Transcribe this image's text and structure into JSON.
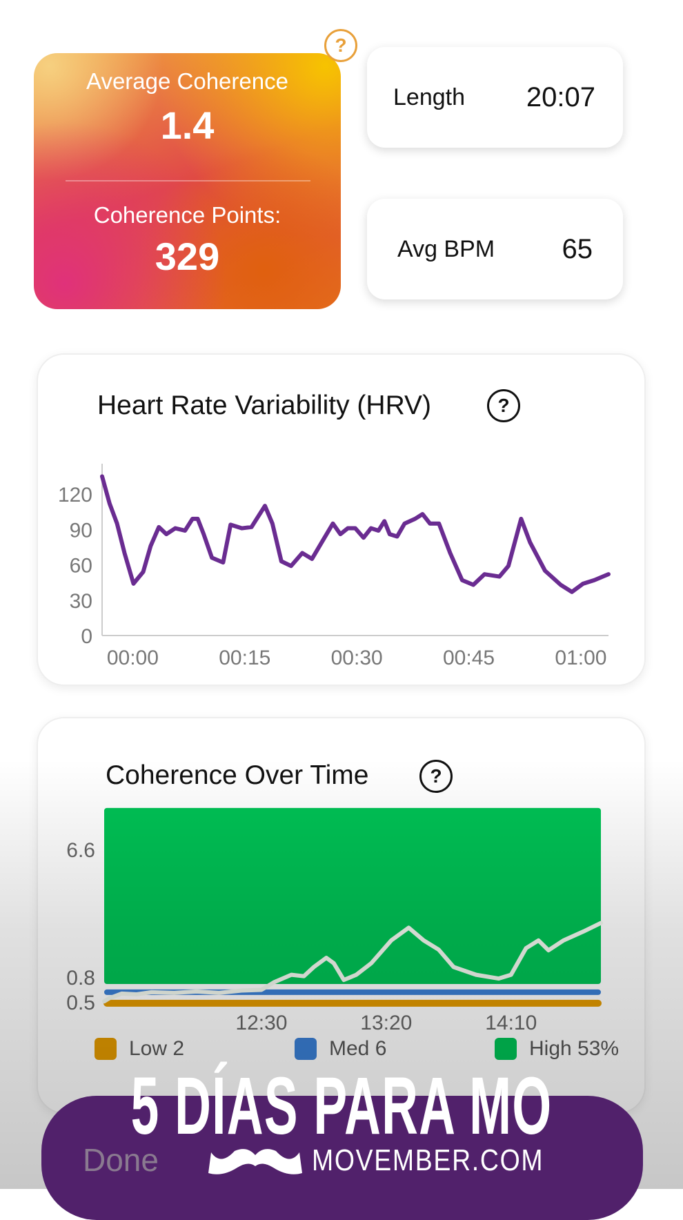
{
  "summary": {
    "avg_coherence_label": "Average Coherence",
    "avg_coherence_value": "1.4",
    "points_label": "Coherence Points:",
    "points_value": "329",
    "help": "?"
  },
  "stats": [
    {
      "label": "Length",
      "value": "20:07"
    },
    {
      "label": "Avg BPM",
      "value": "65"
    }
  ],
  "hrv": {
    "title": "Heart Rate Variability (HRV)",
    "help": "?"
  },
  "coherence": {
    "title": "Coherence Over Time",
    "help": "?",
    "legend": [
      {
        "label": "Low 2",
        "color": "#e39a00"
      },
      {
        "label": "Med 6",
        "color": "#3a7fd5"
      },
      {
        "label": "High 53%",
        "color": "#00c255"
      }
    ]
  },
  "done_label": "Done",
  "overlay": {
    "headline": "5 DÍAS PARA MO",
    "brand": "MOVEMBER.COM"
  },
  "chart_data": [
    {
      "type": "line",
      "title": "Heart Rate Variability (HRV)",
      "xlabel": "",
      "ylabel": "",
      "ylim": [
        0,
        135
      ],
      "xlim": [
        -4.1,
        63.7
      ],
      "yticks": [
        0,
        30,
        60,
        90,
        120
      ],
      "xticks": [
        {
          "value": 0,
          "label": "00:00"
        },
        {
          "value": 15,
          "label": "00:15"
        },
        {
          "value": 30,
          "label": "00:30"
        },
        {
          "value": 45,
          "label": "00:45"
        },
        {
          "value": 60,
          "label": "01:00"
        }
      ],
      "color": "#6a2c91",
      "x": [
        -4.1,
        -3.1,
        -2.1,
        -1.1,
        0.1,
        1.4,
        2.4,
        3.5,
        4.5,
        5.7,
        7.0,
        8.0,
        8.7,
        9.5,
        10.6,
        12.1,
        13.1,
        14.6,
        15.9,
        17.7,
        18.7,
        19.9,
        21.2,
        22.7,
        24.0,
        25.3,
        26.8,
        27.8,
        28.8,
        29.8,
        30.9,
        31.9,
        32.9,
        33.7,
        34.4,
        35.4,
        36.4,
        37.8,
        38.8,
        39.8,
        41.0,
        42.5,
        44.1,
        45.6,
        47.1,
        49.1,
        50.3,
        52.0,
        53.2,
        55.2,
        57.3,
        58.8,
        60.3,
        61.8,
        63.7
      ],
      "y": [
        135,
        112,
        95,
        70,
        44,
        54,
        76,
        92,
        86,
        91,
        89,
        99,
        99,
        86,
        66,
        62,
        94,
        91,
        92,
        110,
        95,
        63,
        59,
        70,
        65,
        79,
        95,
        86,
        91,
        91,
        83,
        91,
        89,
        97,
        86,
        84,
        95,
        99,
        103,
        95,
        95,
        70,
        47,
        43,
        52,
        50,
        59,
        99,
        79,
        55,
        43,
        37,
        44,
        47,
        52
      ]
    },
    {
      "type": "line",
      "title": "Coherence Over Time",
      "xlabel": "",
      "ylabel": "",
      "ylim": [
        0,
        8.37
      ],
      "xlim": [
        687,
        886
      ],
      "yticks": [
        {
          "value": 6.6,
          "label": "6.6"
        },
        {
          "value": 0.8,
          "label": "0.8"
        },
        {
          "value": 0.5,
          "label": "0.5"
        }
      ],
      "xticks": [
        {
          "value": 750,
          "label": "12:30"
        },
        {
          "value": 800,
          "label": "13:20"
        },
        {
          "value": 850,
          "label": "14:10"
        }
      ],
      "zones": {
        "high": {
          "from": 0.8,
          "to": 8.37,
          "color": "#00c255"
        },
        "med_line": {
          "value": 0.54,
          "color": "#3a7fd5"
        },
        "low_line": {
          "value": 0.07,
          "color": "#e39a00"
        }
      },
      "line_color": "#f2f8ef",
      "x": [
        687,
        689,
        694,
        700,
        706,
        715,
        724,
        733,
        742,
        750,
        755,
        762,
        767,
        771,
        776,
        779,
        783,
        788,
        794,
        802,
        809,
        815,
        821,
        827,
        836,
        845,
        850,
        856,
        861,
        865,
        871,
        879,
        886
      ],
      "y": [
        0.15,
        0.28,
        0.48,
        0.45,
        0.54,
        0.51,
        0.57,
        0.51,
        0.61,
        0.64,
        0.96,
        1.28,
        1.22,
        1.61,
        2.0,
        1.77,
        1.06,
        1.28,
        1.77,
        2.74,
        3.28,
        2.74,
        2.35,
        1.61,
        1.28,
        1.12,
        1.28,
        2.41,
        2.74,
        2.32,
        2.74,
        3.12,
        3.48
      ]
    }
  ]
}
